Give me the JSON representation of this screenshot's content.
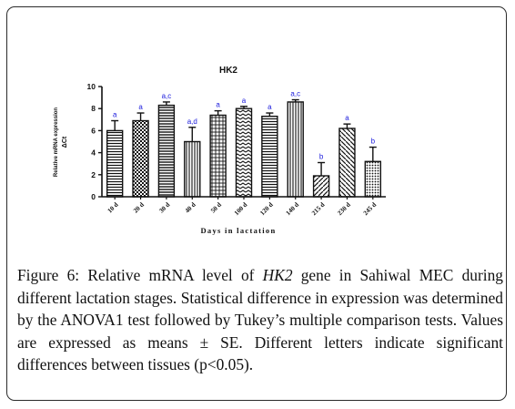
{
  "chart_data": {
    "type": "bar",
    "title": "HK2",
    "xlabel": "Days in lactation",
    "ylabel_line1": "Relative mRNA expression",
    "ylabel_line2": "ΔCt",
    "ylim": [
      0,
      10
    ],
    "yticks": [
      "0",
      "2",
      "4",
      "6",
      "8",
      "10"
    ],
    "categories": [
      "10 d",
      "20 d",
      "30 d",
      "40 d",
      "50 d",
      "100 d",
      "120 d",
      "140 d",
      "215 d",
      "230 d",
      "245 d"
    ],
    "values": [
      6.0,
      6.9,
      8.3,
      5.0,
      7.4,
      8.0,
      7.3,
      8.6,
      1.9,
      6.2,
      3.2
    ],
    "errors": [
      0.9,
      0.7,
      0.3,
      1.3,
      0.4,
      0.2,
      0.3,
      0.2,
      1.2,
      0.4,
      1.3
    ],
    "significance_letters": [
      "a",
      "a",
      "a,c",
      "a,d",
      "a",
      "a",
      "a",
      "a,c",
      "b",
      "a",
      "b"
    ],
    "letter_color": "#1a1adc",
    "bar_color": "#111111"
  },
  "caption": {
    "label": "Figure 6:",
    "text_before": " Relative mRNA level of ",
    "gene": "HK2",
    "text_after": " gene in Sahiwal MEC during different lactation stages. Statistical difference in expression was determined by the ANOVA1 test followed by Tukey’s multiple comparison tests. Values are expressed as means ± SE. Different letters indicate significant differences between tissues (p<0.05)."
  }
}
